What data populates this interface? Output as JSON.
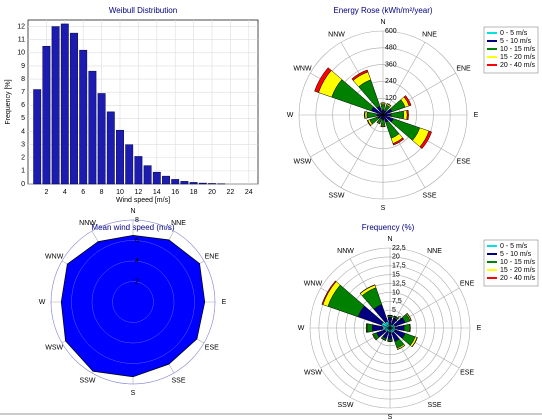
{
  "chart_data": [
    {
      "type": "bar",
      "title": "Weibull Distribution",
      "x_label": "Wind speed [m/s]",
      "y_label": "Frequency [%]",
      "x": [
        1,
        2,
        3,
        4,
        5,
        6,
        7,
        8,
        9,
        10,
        11,
        12,
        13,
        14,
        15,
        16,
        17,
        18,
        19,
        20,
        21
      ],
      "values": [
        7.2,
        10.5,
        12.0,
        12.2,
        11.5,
        10.2,
        8.6,
        6.9,
        5.5,
        4.1,
        3.0,
        2.1,
        1.4,
        0.9,
        0.6,
        0.35,
        0.2,
        0.12,
        0.07,
        0.04,
        0.02
      ],
      "color": "#1c1cb0",
      "xlim": [
        0,
        25
      ],
      "xticks": [
        2,
        4,
        6,
        8,
        10,
        12,
        14,
        16,
        18,
        20,
        22,
        24
      ],
      "ylim": [
        0,
        12.5
      ],
      "yticks": [
        0,
        1,
        2,
        3,
        4,
        5,
        6,
        7,
        8,
        9,
        10,
        11,
        12
      ],
      "grid": true
    },
    {
      "type": "rose",
      "title": "Energy Rose (kWh/m²/year)",
      "categories": [
        "N",
        "NNE",
        "ENE",
        "E",
        "ESE",
        "SSE",
        "S",
        "SSW",
        "WSW",
        "W",
        "WNW",
        "NNW"
      ],
      "rlim": [
        0,
        600
      ],
      "rticks": [
        120,
        240,
        360,
        480,
        600
      ],
      "legend": "right",
      "series": [
        {
          "name": "0 - 5 m/s",
          "color": "#00e0e0",
          "values": [
            5,
            5,
            8,
            8,
            8,
            6,
            5,
            5,
            5,
            5,
            8,
            6
          ]
        },
        {
          "name": "5 - 10 m/s",
          "color": "#000080",
          "values": [
            30,
            30,
            60,
            50,
            70,
            50,
            30,
            25,
            35,
            40,
            80,
            60
          ]
        },
        {
          "name": "10 - 15 m/s",
          "color": "#008000",
          "values": [
            40,
            40,
            100,
            90,
            200,
            120,
            40,
            30,
            60,
            70,
            300,
            200
          ]
        },
        {
          "name": "15 - 20 m/s",
          "color": "#ffff00",
          "values": [
            10,
            10,
            30,
            25,
            70,
            40,
            8,
            6,
            15,
            15,
            100,
            60
          ]
        },
        {
          "name": "20 - 40 m/s",
          "color": "#ff0000",
          "values": [
            3,
            3,
            15,
            10,
            20,
            12,
            2,
            2,
            4,
            4,
            30,
            15
          ]
        }
      ]
    },
    {
      "type": "radar",
      "title": "Mean wind speed (m/s)",
      "categories": [
        "N",
        "NNE",
        "ENE",
        "E",
        "ESE",
        "SSE",
        "S",
        "SSW",
        "WSW",
        "W",
        "WNW",
        "NNW"
      ],
      "values": [
        6.5,
        7.0,
        7.5,
        7.0,
        7.2,
        7.0,
        7.3,
        7.8,
        7.6,
        7.0,
        7.4,
        6.8
      ],
      "color": "#0000ff",
      "rlim": [
        0,
        8
      ],
      "rticks": [
        2,
        4,
        6,
        8
      ]
    },
    {
      "type": "rose",
      "title": "Frequency (%)",
      "categories": [
        "N",
        "NNE",
        "ENE",
        "E",
        "ESE",
        "SSE",
        "S",
        "SSW",
        "WSW",
        "W",
        "WNW",
        "NNW"
      ],
      "rlim": [
        0,
        22.5
      ],
      "legend": "right",
      "rticks": [
        {
          "value": 2.5,
          "label": "2,5"
        },
        5,
        {
          "value": 7.5,
          "label": "7,5"
        },
        10,
        {
          "value": 12.5,
          "label": "12,5"
        },
        15,
        {
          "value": 17.5,
          "label": "17,5"
        },
        20,
        {
          "value": 22.5,
          "label": "22,5"
        }
      ],
      "series": [
        {
          "name": "0 - 5 m/s",
          "color": "#00e0e0",
          "values": [
            1,
            1,
            1.5,
            1.5,
            1.5,
            1.5,
            1.2,
            1.2,
            1.5,
            2,
            2.5,
            2
          ]
        },
        {
          "name": "5 - 10 m/s",
          "color": "#000080",
          "values": [
            2,
            2,
            3,
            2.5,
            3,
            2.5,
            2,
            2,
            2.5,
            3,
            7,
            5
          ]
        },
        {
          "name": "10 - 15 m/s",
          "color": "#008000",
          "values": [
            0.5,
            0.5,
            1.5,
            1.5,
            3,
            2,
            0.5,
            0.5,
            1,
            1.5,
            9,
            5
          ]
        },
        {
          "name": "15 - 20 m/s",
          "color": "#ffff00",
          "values": [
            0.1,
            0.1,
            0.3,
            0.2,
            0.6,
            0.4,
            0.1,
            0.05,
            0.2,
            0.2,
            1.5,
            0.8
          ]
        },
        {
          "name": "20 - 40 m/s",
          "color": "#ff0000",
          "values": [
            0.02,
            0.02,
            0.1,
            0.05,
            0.1,
            0.05,
            0.01,
            0.01,
            0.02,
            0.02,
            0.3,
            0.1
          ]
        }
      ]
    }
  ]
}
